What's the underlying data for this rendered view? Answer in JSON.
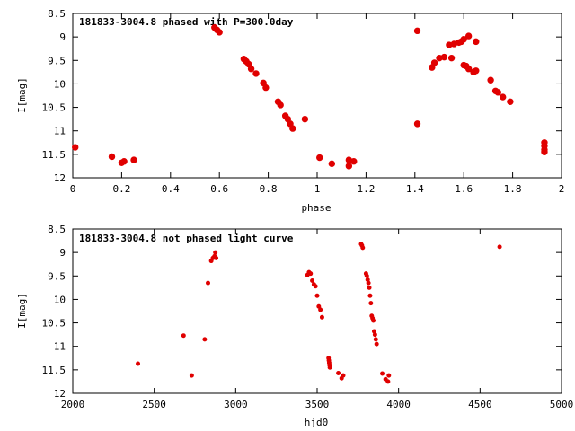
{
  "chart_data": [
    {
      "type": "scatter",
      "title": "181833-3004.8 phased with P=300.0day",
      "xlabel": "phase",
      "ylabel": "I[mag]",
      "xlim": [
        0,
        2
      ],
      "ylim": [
        12,
        8.5
      ],
      "y_inverted": true,
      "grid": false,
      "marker_color": "#e00000",
      "x_ticks": [
        "0",
        "0.2",
        "0.4",
        "0.6",
        "0.8",
        "1",
        "1.2",
        "1.4",
        "1.6",
        "1.8",
        "2"
      ],
      "y_ticks": [
        "8.5",
        "9",
        "9.5",
        "10",
        "10.5",
        "11",
        "11.5",
        "12"
      ],
      "points": [
        [
          0.01,
          11.35
        ],
        [
          0.16,
          11.55
        ],
        [
          0.2,
          11.68
        ],
        [
          0.21,
          11.65
        ],
        [
          0.25,
          11.62
        ],
        [
          0.58,
          8.8
        ],
        [
          0.59,
          8.85
        ],
        [
          0.6,
          8.9
        ],
        [
          0.7,
          9.47
        ],
        [
          0.71,
          9.52
        ],
        [
          0.72,
          9.58
        ],
        [
          0.73,
          9.68
        ],
        [
          0.75,
          9.78
        ],
        [
          0.78,
          9.98
        ],
        [
          0.79,
          10.08
        ],
        [
          0.84,
          10.38
        ],
        [
          0.85,
          10.45
        ],
        [
          0.87,
          10.68
        ],
        [
          0.88,
          10.75
        ],
        [
          0.89,
          10.85
        ],
        [
          0.9,
          10.95
        ],
        [
          0.95,
          10.75
        ],
        [
          1.01,
          11.57
        ],
        [
          1.06,
          11.7
        ],
        [
          1.13,
          11.62
        ],
        [
          1.13,
          11.75
        ],
        [
          1.15,
          11.65
        ],
        [
          1.41,
          8.87
        ],
        [
          1.41,
          10.85
        ],
        [
          1.47,
          9.65
        ],
        [
          1.48,
          9.55
        ],
        [
          1.5,
          9.45
        ],
        [
          1.52,
          9.43
        ],
        [
          1.54,
          9.17
        ],
        [
          1.55,
          9.45
        ],
        [
          1.56,
          9.15
        ],
        [
          1.58,
          9.12
        ],
        [
          1.59,
          9.1
        ],
        [
          1.6,
          9.6
        ],
        [
          1.6,
          9.05
        ],
        [
          1.61,
          9.62
        ],
        [
          1.62,
          8.98
        ],
        [
          1.62,
          9.68
        ],
        [
          1.64,
          9.75
        ],
        [
          1.65,
          9.72
        ],
        [
          1.65,
          9.1
        ],
        [
          1.71,
          9.92
        ],
        [
          1.73,
          10.15
        ],
        [
          1.74,
          10.18
        ],
        [
          1.76,
          10.28
        ],
        [
          1.79,
          10.38
        ],
        [
          1.93,
          11.25
        ],
        [
          1.93,
          11.32
        ],
        [
          1.93,
          11.4
        ],
        [
          1.93,
          11.45
        ]
      ]
    },
    {
      "type": "scatter",
      "title": "181833-3004.8 not phased light curve",
      "xlabel": "hjd0",
      "ylabel": "I[mag]",
      "xlim": [
        2000,
        5000
      ],
      "ylim": [
        12,
        8.5
      ],
      "y_inverted": true,
      "grid": false,
      "marker_color": "#e00000",
      "x_ticks": [
        "2000",
        "2500",
        "3000",
        "3500",
        "4000",
        "4500",
        "5000"
      ],
      "y_ticks": [
        "8.5",
        "9",
        "9.5",
        "10",
        "10.5",
        "11",
        "11.5",
        "12"
      ],
      "points": [
        [
          2400,
          11.37
        ],
        [
          2680,
          10.77
        ],
        [
          2730,
          11.62
        ],
        [
          2810,
          10.85
        ],
        [
          2830,
          9.65
        ],
        [
          2850,
          9.18
        ],
        [
          2860,
          9.12
        ],
        [
          2870,
          9.08
        ],
        [
          2875,
          9.0
        ],
        [
          2880,
          9.12
        ],
        [
          3440,
          9.48
        ],
        [
          3450,
          9.42
        ],
        [
          3460,
          9.45
        ],
        [
          3470,
          9.6
        ],
        [
          3480,
          9.68
        ],
        [
          3490,
          9.72
        ],
        [
          3500,
          9.92
        ],
        [
          3510,
          10.15
        ],
        [
          3520,
          10.22
        ],
        [
          3530,
          10.38
        ],
        [
          3570,
          11.25
        ],
        [
          3572,
          11.3
        ],
        [
          3574,
          11.35
        ],
        [
          3576,
          11.4
        ],
        [
          3578,
          11.45
        ],
        [
          3630,
          11.57
        ],
        [
          3650,
          11.68
        ],
        [
          3660,
          11.62
        ],
        [
          3770,
          8.82
        ],
        [
          3775,
          8.85
        ],
        [
          3780,
          8.9
        ],
        [
          3800,
          9.45
        ],
        [
          3805,
          9.5
        ],
        [
          3810,
          9.58
        ],
        [
          3815,
          9.65
        ],
        [
          3820,
          9.75
        ],
        [
          3825,
          9.92
        ],
        [
          3830,
          10.08
        ],
        [
          3835,
          10.35
        ],
        [
          3840,
          10.4
        ],
        [
          3845,
          10.45
        ],
        [
          3850,
          10.68
        ],
        [
          3855,
          10.75
        ],
        [
          3860,
          10.85
        ],
        [
          3865,
          10.95
        ],
        [
          3900,
          11.58
        ],
        [
          3920,
          11.7
        ],
        [
          3940,
          11.62
        ],
        [
          3935,
          11.75
        ],
        [
          4620,
          8.88
        ]
      ]
    }
  ]
}
